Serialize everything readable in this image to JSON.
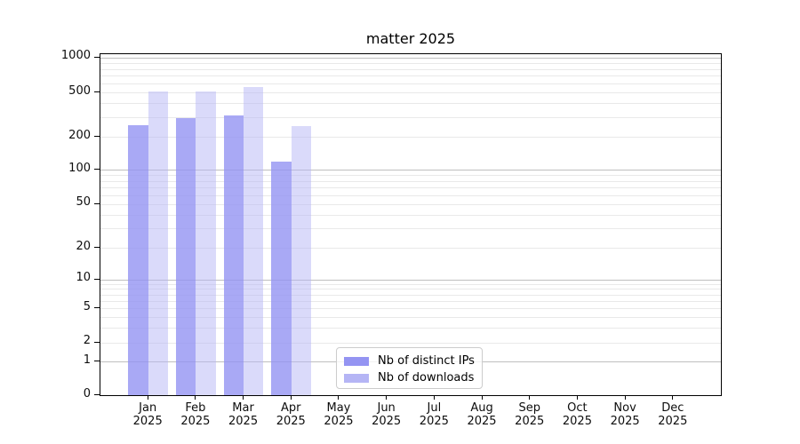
{
  "chart_data": {
    "type": "bar",
    "title": "matter 2025",
    "categories": [
      "Jan 2025",
      "Feb 2025",
      "Mar 2025",
      "Apr 2025",
      "May 2025",
      "Jun 2025",
      "Jul 2025",
      "Aug 2025",
      "Sep 2025",
      "Oct 2025",
      "Nov 2025",
      "Dec 2025"
    ],
    "series": [
      {
        "name": "Nb of distinct IPs",
        "color": "#9494f2",
        "values": [
          255,
          296,
          310,
          118,
          0,
          0,
          0,
          0,
          0,
          0,
          0,
          0
        ]
      },
      {
        "name": "Nb of downloads",
        "color": "#b5b5f5",
        "values": [
          505,
          505,
          560,
          248,
          0,
          0,
          0,
          0,
          0,
          0,
          0,
          0
        ]
      }
    ],
    "y_ticks": [
      0,
      1,
      2,
      5,
      10,
      20,
      50,
      100,
      200,
      500,
      1000
    ],
    "y_minor_gridlines": [
      3,
      4,
      6,
      7,
      8,
      9,
      30,
      40,
      60,
      70,
      80,
      90,
      300,
      400,
      600,
      700,
      800,
      900
    ],
    "y_scale": "log above 1, linear 0-1 (symlog)",
    "ylim": [
      0,
      1000
    ],
    "grid": true,
    "legend_position": "lower center"
  }
}
